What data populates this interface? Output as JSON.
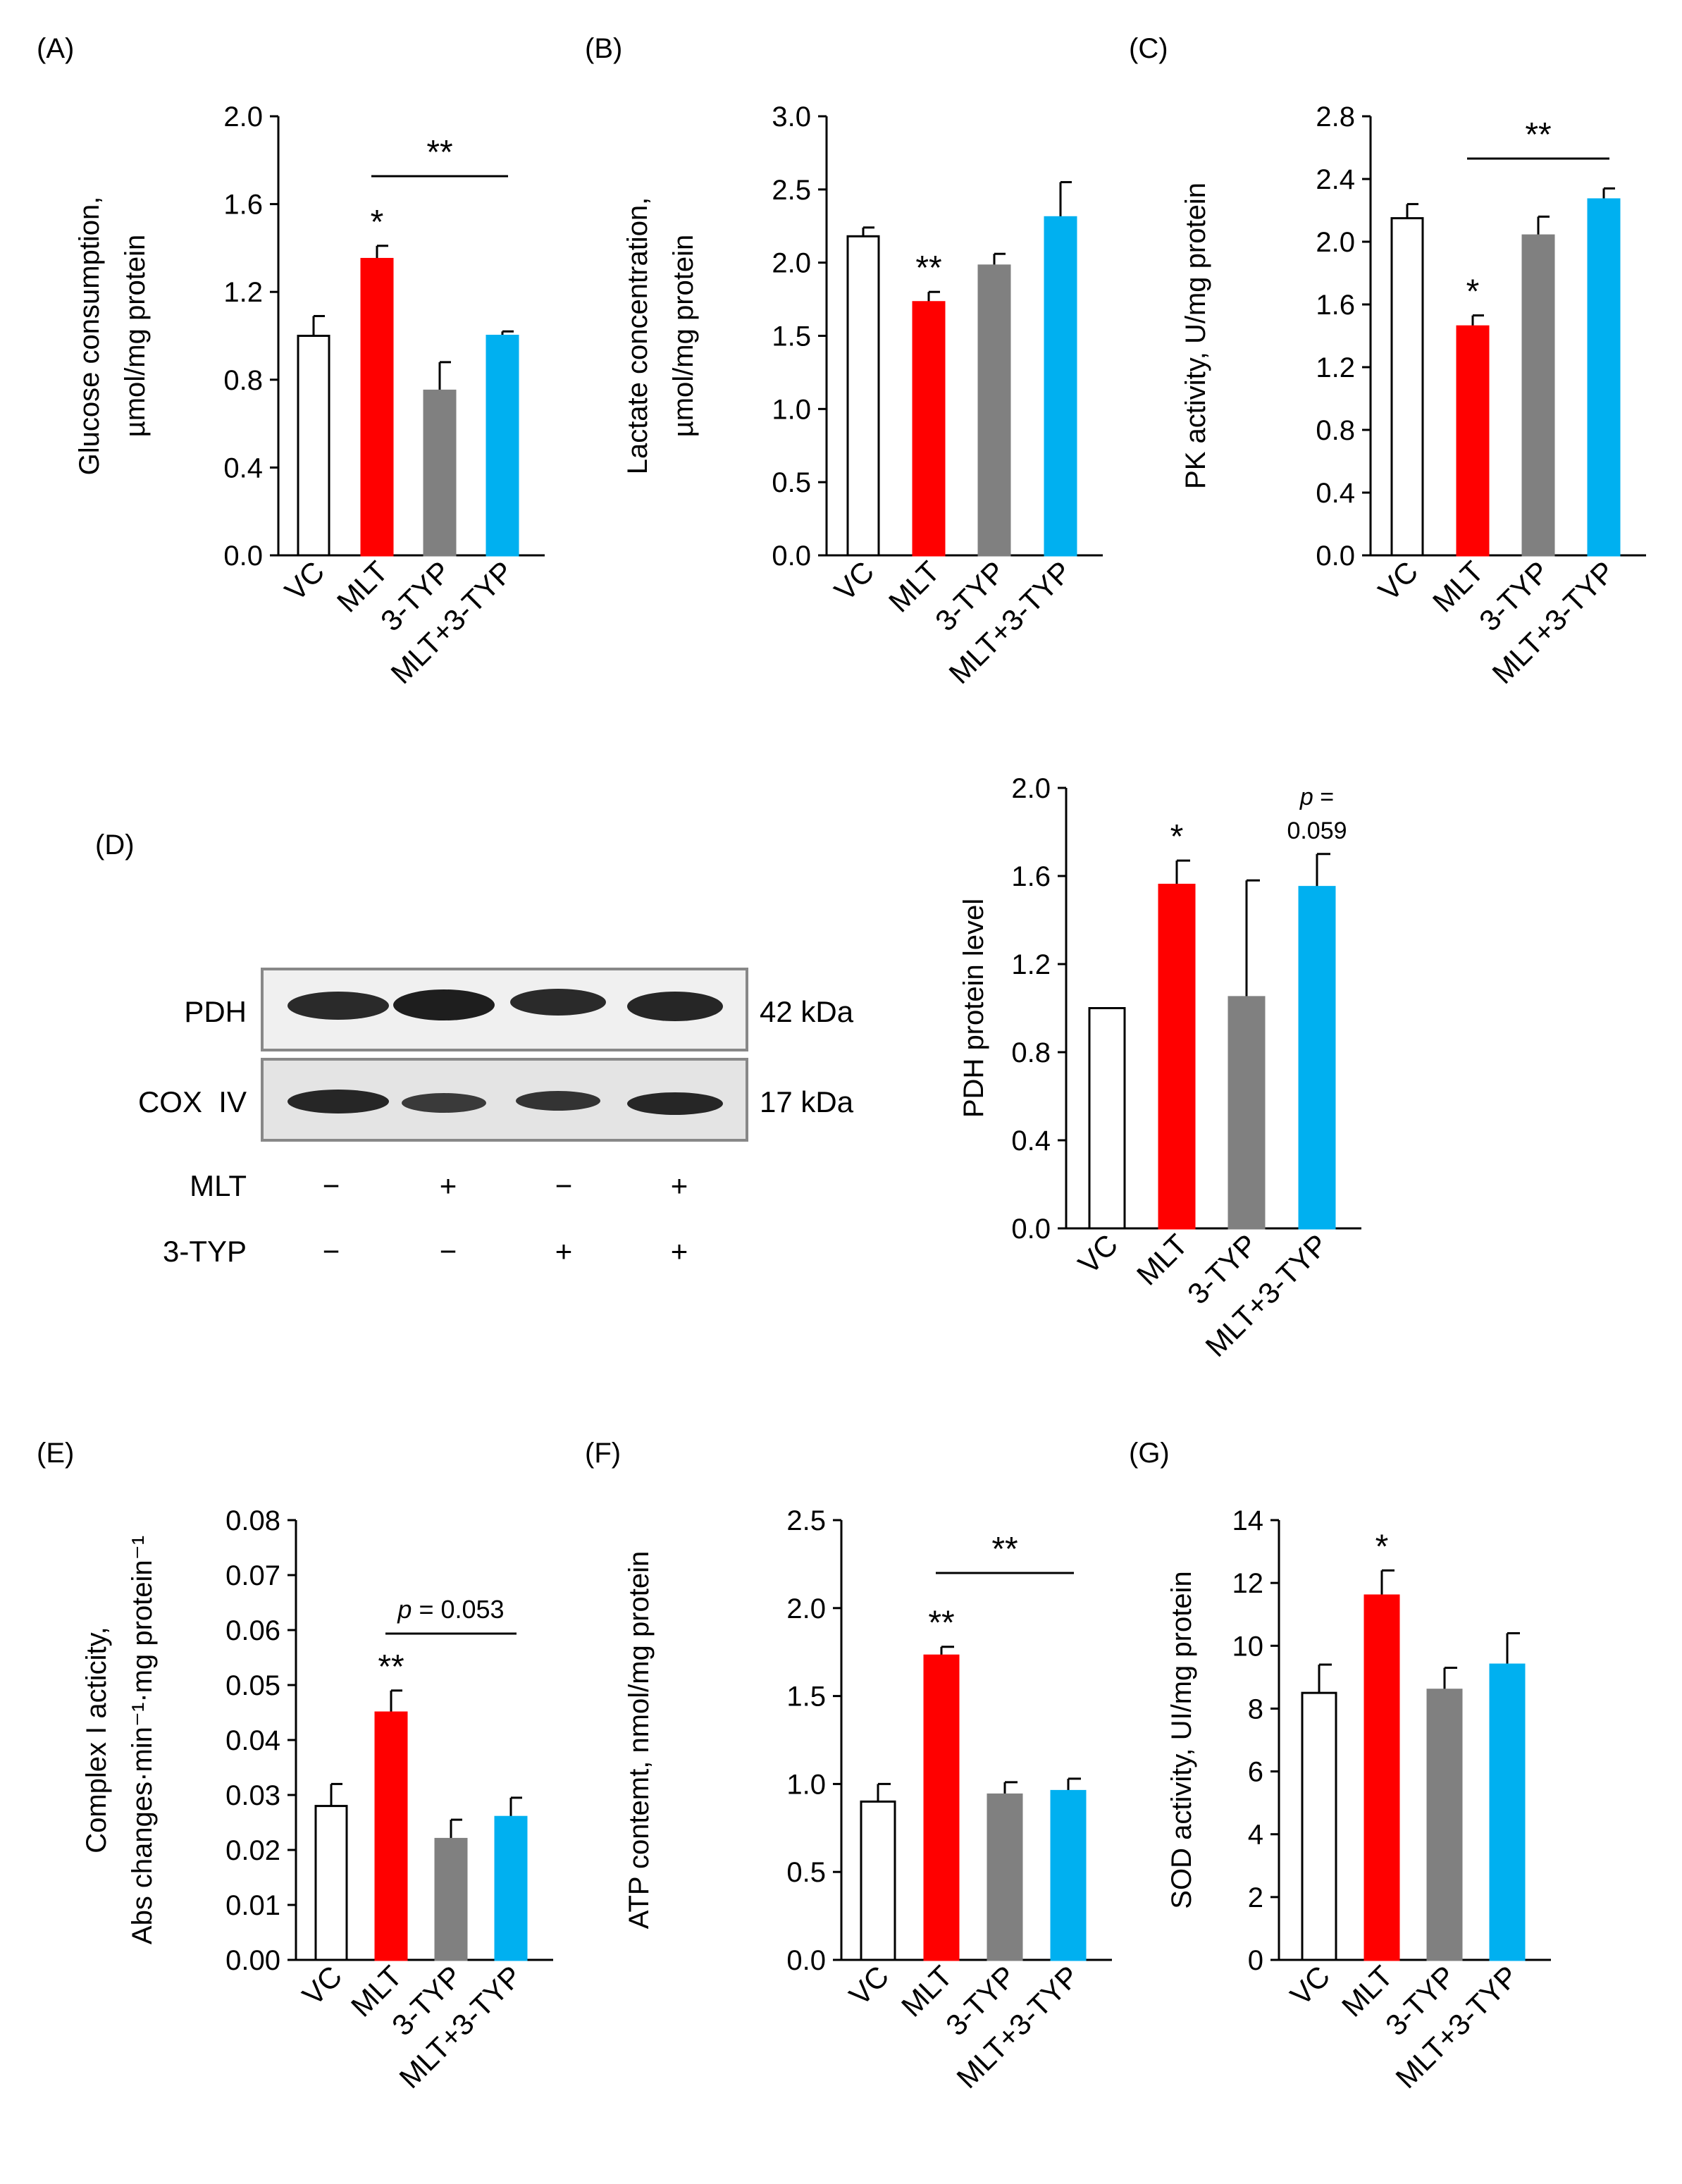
{
  "figure": {
    "categories": [
      "VC",
      "MLT",
      "3-TYP",
      "MLT+3-TYP"
    ],
    "colors": [
      "#ffffff",
      "#ff0000",
      "#808080",
      "#00b0f0"
    ]
  },
  "chart_data": [
    {
      "panel": "(A)",
      "type": "bar",
      "ylabel": [
        "Glucose consumption,",
        "µmol/mg protein"
      ],
      "ylim": [
        0,
        2.0
      ],
      "yticks": [
        "0.0",
        "0.4",
        "0.8",
        "1.2",
        "1.6",
        "2.0"
      ],
      "categories": [
        "VC",
        "MLT",
        "3-TYP",
        "MLT+3-TYP"
      ],
      "values": [
        1.0,
        1.35,
        0.75,
        1.0
      ],
      "errors": [
        0.09,
        0.06,
        0.13,
        0.02
      ],
      "annotations": [
        {
          "bar": 1,
          "text": "*"
        }
      ],
      "brackets": [
        {
          "from": 1,
          "to": 3,
          "text": "**"
        }
      ]
    },
    {
      "panel": "(B)",
      "type": "bar",
      "ylabel": [
        "Lactate concentration,",
        "µmol/mg protein"
      ],
      "ylim": [
        0,
        3.0
      ],
      "yticks": [
        "0.0",
        "0.5",
        "1.0",
        "1.5",
        "2.0",
        "2.5",
        "3.0"
      ],
      "categories": [
        "VC",
        "MLT",
        "3-TYP",
        "MLT+3-TYP"
      ],
      "values": [
        2.18,
        1.73,
        1.98,
        2.31
      ],
      "errors": [
        0.06,
        0.07,
        0.08,
        0.24
      ],
      "annotations": [
        {
          "bar": 1,
          "text": "**"
        }
      ],
      "brackets": []
    },
    {
      "panel": "(C)",
      "type": "bar",
      "ylabel": [
        "PK activity, U/mg protein"
      ],
      "ylim": [
        0,
        2.8
      ],
      "yticks": [
        "0.0",
        "0.4",
        "0.8",
        "1.2",
        "1.6",
        "2.0",
        "2.4",
        "2.8"
      ],
      "categories": [
        "VC",
        "MLT",
        "3-TYP",
        "MLT+3-TYP"
      ],
      "values": [
        2.15,
        1.46,
        2.04,
        2.27
      ],
      "errors": [
        0.09,
        0.07,
        0.12,
        0.07
      ],
      "annotations": [
        {
          "bar": 1,
          "text": "*"
        }
      ],
      "brackets": [
        {
          "from": 1,
          "to": 3,
          "text": "**"
        }
      ]
    },
    {
      "panel": "(D)",
      "type": "bar",
      "ylabel": [
        "PDH protein level"
      ],
      "ylim": [
        0,
        2.0
      ],
      "yticks": [
        "0.0",
        "0.4",
        "0.8",
        "1.2",
        "1.6",
        "2.0"
      ],
      "categories": [
        "VC",
        "MLT",
        "3-TYP",
        "MLT+3-TYP"
      ],
      "values": [
        1.0,
        1.56,
        1.05,
        1.55
      ],
      "errors": [
        0.0,
        0.11,
        0.53,
        0.15
      ],
      "annotations": [
        {
          "bar": 1,
          "text": "*"
        },
        {
          "bar": 3,
          "p_label": "p",
          "p_eq": " =",
          "p_value": "0.059"
        }
      ],
      "brackets": []
    },
    {
      "panel": "(E)",
      "type": "bar",
      "ylabel": [
        "Complex I acticity,",
        "Abs changes·min⁻¹·mg protein⁻¹"
      ],
      "ylim": [
        0,
        0.08
      ],
      "yticks": [
        "0.00",
        "0.01",
        "0.02",
        "0.03",
        "0.04",
        "0.05",
        "0.06",
        "0.07",
        "0.08"
      ],
      "categories": [
        "VC",
        "MLT",
        "3-TYP",
        "MLT+3-TYP"
      ],
      "values": [
        0.028,
        0.045,
        0.022,
        0.026
      ],
      "errors": [
        0.004,
        0.004,
        0.0035,
        0.0035
      ],
      "annotations": [
        {
          "bar": 1,
          "text": "**"
        }
      ],
      "brackets": [
        {
          "from": 1,
          "to": 3,
          "p_label": "p",
          "text": " = 0.053"
        }
      ]
    },
    {
      "panel": "(F)",
      "type": "bar",
      "ylabel": [
        "ATP contemt, nmol/mg protein"
      ],
      "ylim": [
        0,
        2.5
      ],
      "yticks": [
        "0.0",
        "0.5",
        "1.0",
        "1.5",
        "2.0",
        "2.5"
      ],
      "categories": [
        "VC",
        "MLT",
        "3-TYP",
        "MLT+3-TYP"
      ],
      "values": [
        0.9,
        1.73,
        0.94,
        0.96
      ],
      "errors": [
        0.1,
        0.05,
        0.07,
        0.07
      ],
      "annotations": [
        {
          "bar": 1,
          "text": "**"
        }
      ],
      "brackets": [
        {
          "from": 1,
          "to": 3,
          "text": "**"
        }
      ]
    },
    {
      "panel": "(G)",
      "type": "bar",
      "ylabel": [
        "SOD activity, UI/mg protein"
      ],
      "ylim": [
        0,
        14
      ],
      "yticks": [
        "0",
        "2",
        "4",
        "6",
        "8",
        "10",
        "12",
        "14"
      ],
      "categories": [
        "VC",
        "MLT",
        "3-TYP",
        "MLT+3-TYP"
      ],
      "values": [
        8.5,
        11.6,
        8.6,
        9.4
      ],
      "errors": [
        0.9,
        0.8,
        0.7,
        1.0
      ],
      "annotations": [
        {
          "bar": 1,
          "text": "*"
        }
      ],
      "brackets": []
    }
  ],
  "blot": {
    "panel": "(D)",
    "rows": [
      {
        "label": "PDH",
        "size": "42 kDa"
      },
      {
        "label": "COX  IV",
        "size": "17 kDa"
      }
    ],
    "treatments": [
      {
        "label": "MLT",
        "signs": [
          "−",
          "+",
          "−",
          "+"
        ]
      },
      {
        "label": "3-TYP",
        "signs": [
          "−",
          "−",
          "+",
          "+"
        ]
      }
    ]
  }
}
